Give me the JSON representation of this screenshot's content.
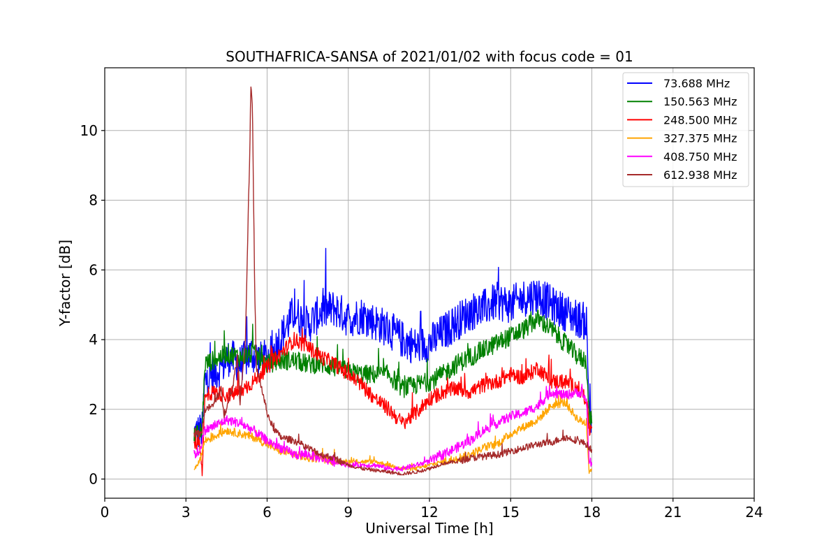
{
  "chart_data": {
    "type": "line",
    "title": "SOUTHAFRICA-SANSA of 2021/01/02 with focus code = 01",
    "xlabel": "Universal Time [h]",
    "ylabel": "Y-factor [dB]",
    "xlim": [
      0,
      24
    ],
    "ylim": [
      -0.55,
      11.8
    ],
    "xticks": [
      0,
      3,
      6,
      9,
      12,
      15,
      18,
      21,
      24
    ],
    "yticks": [
      0,
      2,
      4,
      6,
      8,
      10
    ],
    "grid": true,
    "legend_position": "top-right",
    "series": [
      {
        "name": " 73.688 MHz",
        "color": "#0000ff",
        "points": [
          [
            3.3,
            1.3
          ],
          [
            3.6,
            1.4
          ],
          [
            3.7,
            2.8
          ],
          [
            4.0,
            3.0
          ],
          [
            4.3,
            3.2
          ],
          [
            4.6,
            3.5
          ],
          [
            5.0,
            3.3
          ],
          [
            5.4,
            3.6
          ],
          [
            5.8,
            3.4
          ],
          [
            6.2,
            3.6
          ],
          [
            6.6,
            4.2
          ],
          [
            7.0,
            4.8
          ],
          [
            7.5,
            4.4
          ],
          [
            8.0,
            4.8
          ],
          [
            8.5,
            4.9
          ],
          [
            9.0,
            4.6
          ],
          [
            9.5,
            4.7
          ],
          [
            10.0,
            4.5
          ],
          [
            10.5,
            4.3
          ],
          [
            11.0,
            4.0
          ],
          [
            11.5,
            3.8
          ],
          [
            12.0,
            3.9
          ],
          [
            12.5,
            4.2
          ],
          [
            13.0,
            4.5
          ],
          [
            13.5,
            4.8
          ],
          [
            14.0,
            4.9
          ],
          [
            14.5,
            5.1
          ],
          [
            15.0,
            5.0
          ],
          [
            15.5,
            5.2
          ],
          [
            16.0,
            5.3
          ],
          [
            16.5,
            5.0
          ],
          [
            17.0,
            4.8
          ],
          [
            17.5,
            4.6
          ],
          [
            17.8,
            4.5
          ],
          [
            17.9,
            2.0
          ],
          [
            18.0,
            1.8
          ]
        ]
      },
      {
        "name": "150.563 MHz",
        "color": "#008000",
        "points": [
          [
            3.3,
            1.2
          ],
          [
            3.6,
            1.4
          ],
          [
            3.7,
            3.3
          ],
          [
            4.0,
            3.4
          ],
          [
            4.5,
            3.6
          ],
          [
            5.0,
            3.5
          ],
          [
            5.5,
            3.6
          ],
          [
            6.0,
            3.3
          ],
          [
            6.5,
            3.4
          ],
          [
            7.0,
            3.4
          ],
          [
            7.5,
            3.3
          ],
          [
            8.0,
            3.3
          ],
          [
            8.5,
            3.2
          ],
          [
            9.0,
            3.1
          ],
          [
            9.5,
            3.0
          ],
          [
            10.0,
            3.0
          ],
          [
            10.5,
            3.0
          ],
          [
            11.0,
            2.6
          ],
          [
            11.5,
            2.7
          ],
          [
            12.0,
            2.8
          ],
          [
            12.5,
            3.0
          ],
          [
            13.0,
            3.3
          ],
          [
            13.5,
            3.5
          ],
          [
            14.0,
            3.7
          ],
          [
            14.5,
            3.9
          ],
          [
            15.0,
            4.1
          ],
          [
            15.5,
            4.3
          ],
          [
            16.0,
            4.6
          ],
          [
            16.5,
            4.3
          ],
          [
            17.0,
            3.9
          ],
          [
            17.5,
            3.5
          ],
          [
            17.8,
            3.4
          ],
          [
            17.9,
            1.8
          ],
          [
            18.0,
            1.6
          ]
        ]
      },
      {
        "name": "248.500 MHz",
        "color": "#ff0000",
        "points": [
          [
            3.3,
            1.0
          ],
          [
            3.5,
            1.1
          ],
          [
            3.6,
            0.2
          ],
          [
            3.7,
            2.3
          ],
          [
            4.0,
            2.5
          ],
          [
            4.5,
            2.4
          ],
          [
            5.0,
            2.5
          ],
          [
            5.5,
            2.8
          ],
          [
            6.0,
            3.2
          ],
          [
            6.5,
            3.6
          ],
          [
            7.0,
            4.0
          ],
          [
            7.5,
            3.8
          ],
          [
            8.0,
            3.5
          ],
          [
            8.5,
            3.3
          ],
          [
            9.0,
            3.0
          ],
          [
            9.5,
            2.7
          ],
          [
            10.0,
            2.3
          ],
          [
            10.5,
            2.0
          ],
          [
            11.0,
            1.6
          ],
          [
            11.5,
            1.9
          ],
          [
            12.0,
            2.3
          ],
          [
            12.5,
            2.5
          ],
          [
            13.0,
            2.6
          ],
          [
            13.5,
            2.5
          ],
          [
            14.0,
            2.7
          ],
          [
            14.5,
            2.8
          ],
          [
            15.0,
            3.0
          ],
          [
            15.5,
            2.9
          ],
          [
            16.0,
            3.2
          ],
          [
            16.5,
            2.8
          ],
          [
            17.0,
            2.8
          ],
          [
            17.5,
            2.6
          ],
          [
            17.8,
            2.3
          ],
          [
            17.9,
            1.4
          ],
          [
            18.0,
            1.5
          ]
        ]
      },
      {
        "name": "327.375 MHz",
        "color": "#ffa500",
        "points": [
          [
            3.3,
            0.3
          ],
          [
            3.5,
            0.5
          ],
          [
            3.7,
            1.1
          ],
          [
            4.0,
            1.2
          ],
          [
            4.5,
            1.4
          ],
          [
            5.0,
            1.3
          ],
          [
            5.5,
            1.2
          ],
          [
            6.0,
            1.0
          ],
          [
            6.5,
            0.8
          ],
          [
            7.0,
            0.7
          ],
          [
            7.5,
            0.6
          ],
          [
            8.0,
            0.6
          ],
          [
            8.5,
            0.5
          ],
          [
            9.0,
            0.5
          ],
          [
            9.5,
            0.5
          ],
          [
            10.0,
            0.5
          ],
          [
            10.5,
            0.4
          ],
          [
            11.0,
            0.3
          ],
          [
            11.5,
            0.3
          ],
          [
            12.0,
            0.4
          ],
          [
            12.5,
            0.5
          ],
          [
            13.0,
            0.6
          ],
          [
            13.5,
            0.7
          ],
          [
            14.0,
            0.9
          ],
          [
            14.5,
            1.0
          ],
          [
            15.0,
            1.3
          ],
          [
            15.5,
            1.5
          ],
          [
            16.0,
            1.7
          ],
          [
            16.5,
            2.1
          ],
          [
            17.0,
            2.2
          ],
          [
            17.5,
            1.7
          ],
          [
            17.8,
            1.6
          ],
          [
            17.9,
            0.2
          ],
          [
            18.0,
            0.3
          ]
        ]
      },
      {
        "name": "408.750 MHz",
        "color": "#ff00ff",
        "points": [
          [
            3.3,
            0.7
          ],
          [
            3.5,
            0.8
          ],
          [
            3.7,
            1.4
          ],
          [
            4.0,
            1.5
          ],
          [
            4.5,
            1.7
          ],
          [
            5.0,
            1.6
          ],
          [
            5.5,
            1.4
          ],
          [
            6.0,
            1.1
          ],
          [
            6.5,
            0.9
          ],
          [
            7.0,
            0.7
          ],
          [
            7.5,
            0.7
          ],
          [
            8.0,
            0.6
          ],
          [
            8.5,
            0.5
          ],
          [
            9.0,
            0.4
          ],
          [
            9.5,
            0.4
          ],
          [
            10.0,
            0.4
          ],
          [
            10.5,
            0.3
          ],
          [
            11.0,
            0.3
          ],
          [
            11.5,
            0.4
          ],
          [
            12.0,
            0.5
          ],
          [
            12.5,
            0.7
          ],
          [
            13.0,
            0.9
          ],
          [
            13.5,
            1.1
          ],
          [
            14.0,
            1.4
          ],
          [
            14.5,
            1.6
          ],
          [
            15.0,
            1.8
          ],
          [
            15.5,
            1.9
          ],
          [
            16.0,
            2.1
          ],
          [
            16.5,
            2.5
          ],
          [
            17.0,
            2.4
          ],
          [
            17.5,
            2.5
          ],
          [
            17.8,
            2.3
          ],
          [
            17.9,
            0.5
          ],
          [
            18.0,
            0.4
          ]
        ]
      },
      {
        "name": "612.938 MHz",
        "color": "#a52a2a",
        "points": [
          [
            3.3,
            1.3
          ],
          [
            3.5,
            1.3
          ],
          [
            3.6,
            1.4
          ],
          [
            3.7,
            2.0
          ],
          [
            4.0,
            2.1
          ],
          [
            4.3,
            2.6
          ],
          [
            4.4,
            1.8
          ],
          [
            4.7,
            2.5
          ],
          [
            4.9,
            3.5
          ],
          [
            5.0,
            2.2
          ],
          [
            5.2,
            4.0
          ],
          [
            5.3,
            7.5
          ],
          [
            5.35,
            9.1
          ],
          [
            5.4,
            11.25
          ],
          [
            5.45,
            10.8
          ],
          [
            5.5,
            8.0
          ],
          [
            5.55,
            5.0
          ],
          [
            5.6,
            3.2
          ],
          [
            5.8,
            2.6
          ],
          [
            6.0,
            1.9
          ],
          [
            6.2,
            1.5
          ],
          [
            6.5,
            1.2
          ],
          [
            7.0,
            1.1
          ],
          [
            7.5,
            0.9
          ],
          [
            8.0,
            0.7
          ],
          [
            8.5,
            0.6
          ],
          [
            9.0,
            0.4
          ],
          [
            9.5,
            0.3
          ],
          [
            10.0,
            0.25
          ],
          [
            10.5,
            0.2
          ],
          [
            11.0,
            0.15
          ],
          [
            11.5,
            0.2
          ],
          [
            12.0,
            0.3
          ],
          [
            12.5,
            0.45
          ],
          [
            13.0,
            0.5
          ],
          [
            13.5,
            0.6
          ],
          [
            14.0,
            0.65
          ],
          [
            14.5,
            0.7
          ],
          [
            15.0,
            0.8
          ],
          [
            15.5,
            0.9
          ],
          [
            16.0,
            1.0
          ],
          [
            16.5,
            1.05
          ],
          [
            17.0,
            1.2
          ],
          [
            17.5,
            1.1
          ],
          [
            17.8,
            1.0
          ],
          [
            17.9,
            0.9
          ],
          [
            18.0,
            0.85
          ]
        ]
      }
    ]
  }
}
